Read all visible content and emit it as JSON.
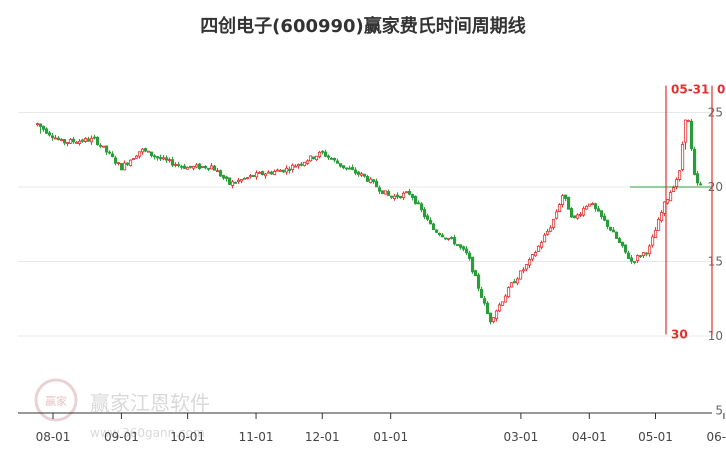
{
  "chart_data": {
    "type": "candlestick",
    "title": "四创电子(600990)赢家费氏时间周期线",
    "x_ticks": [
      "08-01",
      "09-01",
      "10-01",
      "11-01",
      "12-01",
      "01-01",
      "03-01",
      "04-01",
      "05-01",
      "06-01"
    ],
    "y_ticks": [
      5,
      10,
      15,
      20,
      25
    ],
    "ylim": [
      5,
      28
    ],
    "reference_line": 20,
    "cycle_lines": [
      {
        "date": "05-31",
        "label_top": "05-31",
        "label_bottom": "30"
      },
      {
        "date": "0",
        "label_top": "0",
        "label_bottom": ""
      }
    ],
    "price_path": [
      {
        "x": "07-25",
        "y": 24.2
      },
      {
        "x": "08-05",
        "y": 23.0
      },
      {
        "x": "08-20",
        "y": 23.2
      },
      {
        "x": "09-01",
        "y": 21.3
      },
      {
        "x": "09-10",
        "y": 22.5
      },
      {
        "x": "09-20",
        "y": 21.8
      },
      {
        "x": "10-01",
        "y": 21.3
      },
      {
        "x": "10-12",
        "y": 21.4
      },
      {
        "x": "10-20",
        "y": 20.2
      },
      {
        "x": "11-01",
        "y": 20.8
      },
      {
        "x": "11-15",
        "y": 21.2
      },
      {
        "x": "12-01",
        "y": 22.3
      },
      {
        "x": "12-10",
        "y": 21.4
      },
      {
        "x": "12-20",
        "y": 20.7
      },
      {
        "x": "01-01",
        "y": 19.3
      },
      {
        "x": "01-10",
        "y": 19.6
      },
      {
        "x": "01-20",
        "y": 17.2
      },
      {
        "x": "01-30",
        "y": 16.3
      },
      {
        "x": "02-05",
        "y": 15.4
      },
      {
        "x": "02-15",
        "y": 11.0
      },
      {
        "x": "02-25",
        "y": 13.5
      },
      {
        "x": "03-05",
        "y": 15.0
      },
      {
        "x": "03-15",
        "y": 17.5
      },
      {
        "x": "03-20",
        "y": 19.5
      },
      {
        "x": "03-25",
        "y": 17.8
      },
      {
        "x": "04-01",
        "y": 19.0
      },
      {
        "x": "04-10",
        "y": 17.3
      },
      {
        "x": "04-20",
        "y": 15.0
      },
      {
        "x": "04-28",
        "y": 15.8
      },
      {
        "x": "05-05",
        "y": 18.8
      },
      {
        "x": "05-12",
        "y": 21.0
      },
      {
        "x": "05-15",
        "y": 25.5
      },
      {
        "x": "05-19",
        "y": 20.3
      },
      {
        "x": "05-22",
        "y": 20.0
      }
    ],
    "grid": true,
    "colors": {
      "up": "#e52e2e",
      "down": "#2a9d3a",
      "cycle_line": "#e52e2e",
      "reference_line": "#2a9d3a",
      "grid": "#e8e8e8",
      "axis": "#333333"
    }
  },
  "watermark": {
    "logo_text": "赢家",
    "name": "赢家江恩软件",
    "url": "www.360gann.com"
  }
}
